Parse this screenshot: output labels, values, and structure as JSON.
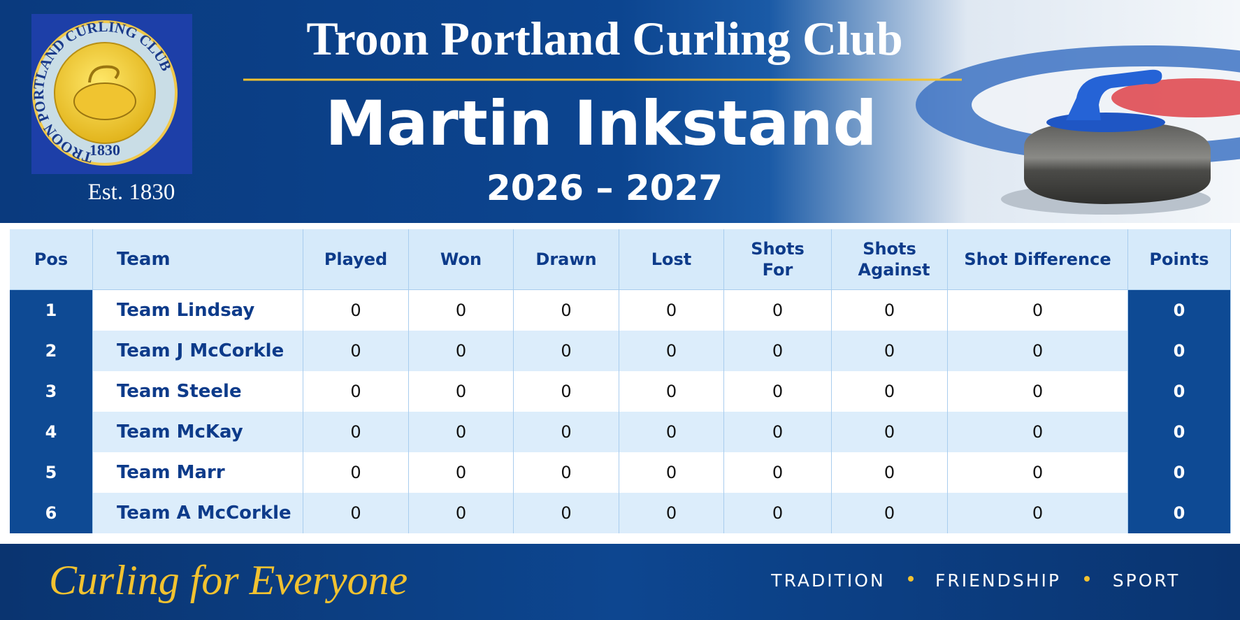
{
  "header": {
    "logo": {
      "ring_text": "TROON PORTLAND CURLING CLUB",
      "year": "1830"
    },
    "established": "Est. 1830",
    "club_name": "Troon Portland Curling Club",
    "competition": "Martin Inkstand",
    "season": "2026 – 2027"
  },
  "table": {
    "columns": [
      "Pos",
      "Team",
      "Played",
      "Won",
      "Drawn",
      "Lost",
      "Shots For",
      "Shots Against",
      "Shot Difference",
      "Points"
    ],
    "rows": [
      [
        1,
        "Team Lindsay",
        0,
        0,
        0,
        0,
        0,
        0,
        0,
        0
      ],
      [
        2,
        "Team J McCorkle",
        0,
        0,
        0,
        0,
        0,
        0,
        0,
        0
      ],
      [
        3,
        "Team Steele",
        0,
        0,
        0,
        0,
        0,
        0,
        0,
        0
      ],
      [
        4,
        "Team McKay",
        0,
        0,
        0,
        0,
        0,
        0,
        0,
        0
      ],
      [
        5,
        "Team Marr",
        0,
        0,
        0,
        0,
        0,
        0,
        0,
        0
      ],
      [
        6,
        "Team A McCorkle",
        0,
        0,
        0,
        0,
        0,
        0,
        0,
        0
      ]
    ]
  },
  "footer": {
    "slogan": "Curling for Everyone",
    "values": [
      "TRADITION",
      "FRIENDSHIP",
      "SPORT"
    ]
  }
}
